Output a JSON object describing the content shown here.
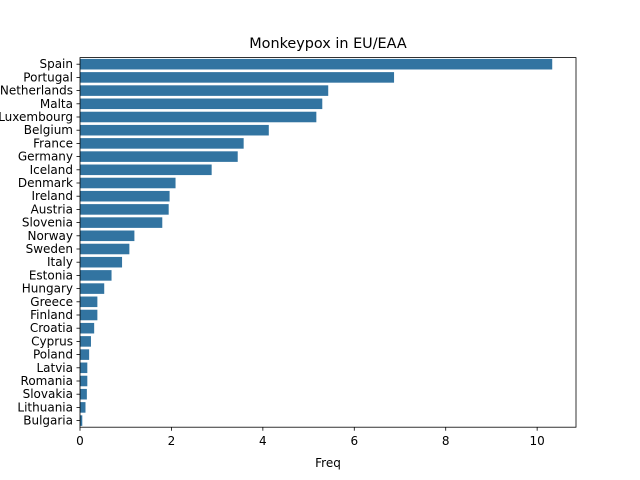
{
  "chart_data": {
    "type": "bar",
    "orientation": "horizontal",
    "title": "Monkeypox in EU/EAA",
    "xlabel": "Freq",
    "ylabel": "",
    "xlim": [
      0,
      10.85
    ],
    "xticks": [
      0,
      2,
      4,
      6,
      8,
      10
    ],
    "grid": false,
    "bar_color": "#3274a1",
    "categories": [
      "Spain",
      "Portugal",
      "Netherlands",
      "Malta",
      "Luxembourg",
      "Belgium",
      "France",
      "Germany",
      "Iceland",
      "Denmark",
      "Ireland",
      "Austria",
      "Slovenia",
      "Norway",
      "Sweden",
      "Italy",
      "Estonia",
      "Hungary",
      "Greece",
      "Finland",
      "Croatia",
      "Cyprus",
      "Poland",
      "Latvia",
      "Romania",
      "Slovakia",
      "Lithuania",
      "Bulgaria"
    ],
    "values": [
      10.33,
      6.87,
      5.43,
      5.3,
      5.17,
      4.13,
      3.58,
      3.45,
      2.88,
      2.09,
      1.96,
      1.94,
      1.8,
      1.19,
      1.08,
      0.92,
      0.69,
      0.53,
      0.38,
      0.38,
      0.31,
      0.24,
      0.2,
      0.16,
      0.16,
      0.15,
      0.12,
      0.05
    ]
  }
}
